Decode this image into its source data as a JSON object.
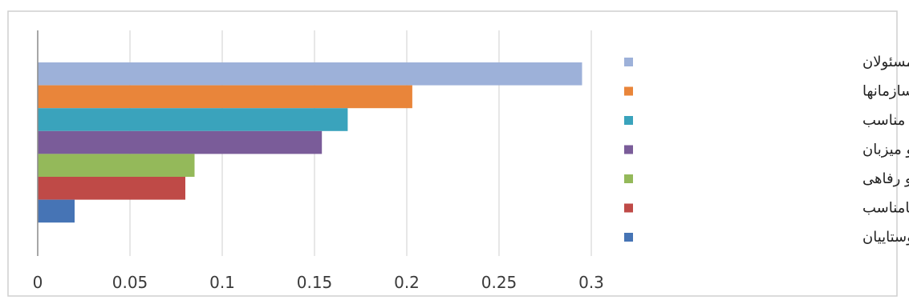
{
  "chart_data": {
    "type": "bar",
    "orientation": "horizontal",
    "title": "",
    "xlabel": "",
    "ylabel": "",
    "xlim": [
      0,
      0.3
    ],
    "x_ticks": [
      "0",
      "0.05",
      "0.1",
      "0.15",
      "0.2",
      "0.25",
      "0.3"
    ],
    "x_tick_values": [
      0,
      0.05,
      0.1,
      0.15,
      0.2,
      0.25,
      0.3
    ],
    "grid": "vertical",
    "legend_position": "right",
    "categories": [
      "بی توجهی مسئولان",
      "عدم هماهنگی بین سازمانها",
      "نبود تبلیغات مناسب",
      "تفاوت فرهنگی بین گردشگر و میزبان",
      "عدم وجود مراکز اقامتی و رفاهی",
      "سیستم حمل و نقل نامناسب",
      "پایین بودن آگاهی روستاییان"
    ],
    "values": [
      0.295,
      0.203,
      0.168,
      0.154,
      0.085,
      0.08,
      0.02
    ],
    "colors": [
      "#9DB1D9",
      "#E9853A",
      "#3AA3BC",
      "#7A5C99",
      "#94B95A",
      "#BF4A47",
      "#4674B5"
    ]
  }
}
